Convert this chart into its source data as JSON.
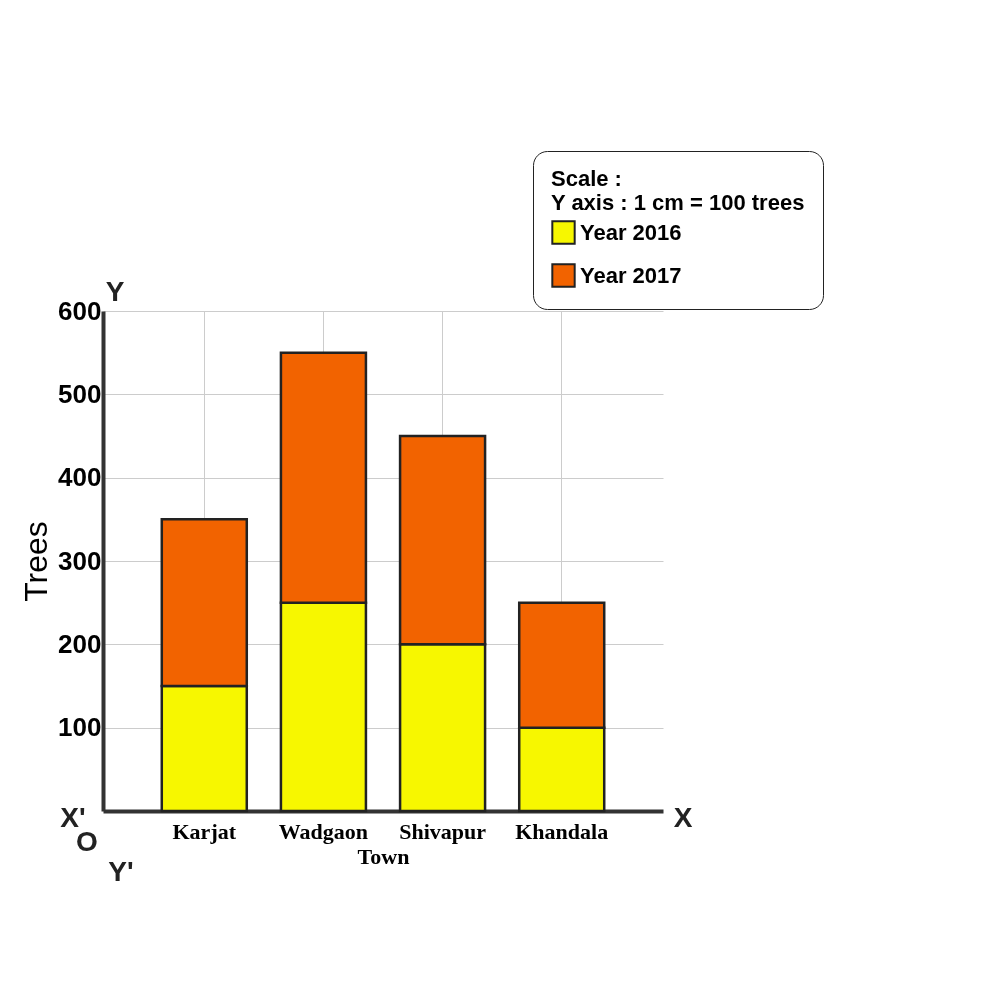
{
  "chart_data": {
    "type": "bar",
    "stacked": true,
    "xlabel": "Town",
    "ylabel": "Trees",
    "categories": [
      "Karjat",
      "Wadgaon",
      "Shivapur",
      "Khandala"
    ],
    "series": [
      {
        "name": "Year 2016",
        "color": "#f7f700",
        "values": [
          150,
          250,
          200,
          100
        ]
      },
      {
        "name": "Year 2017",
        "color": "#f26300",
        "values": [
          200,
          300,
          250,
          150
        ]
      }
    ],
    "ylim": [
      0,
      600
    ],
    "yticks": [
      100,
      200,
      300,
      400,
      500,
      600
    ],
    "grid": true,
    "legend": "top right",
    "annotations": [
      "Scale :",
      "Y axis : 1 cm = 100 trees",
      "X'",
      "X",
      "Y",
      "Y'",
      "O"
    ]
  }
}
